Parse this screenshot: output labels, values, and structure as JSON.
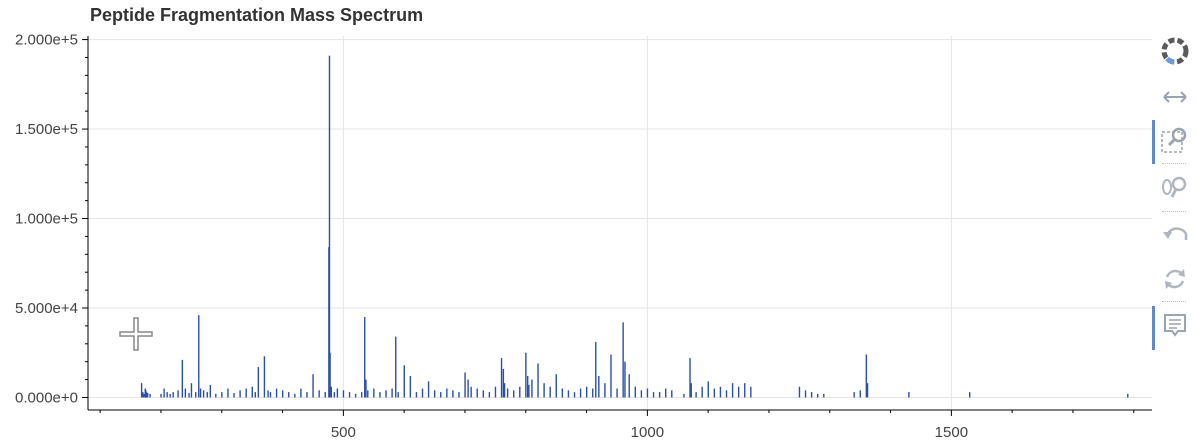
{
  "chart_data": {
    "type": "bar",
    "title": "Peptide Fragmentation Mass Spectrum",
    "xlabel": "",
    "ylabel": "",
    "xlim": [
      80,
      1830
    ],
    "ylim": [
      -7000,
      202000
    ],
    "x_ticks": [
      500,
      1000,
      1500
    ],
    "x_tick_labels": [
      "500",
      "1000",
      "1500"
    ],
    "x_minor_ticks": [
      100,
      200,
      300,
      400,
      600,
      700,
      800,
      900,
      1100,
      1200,
      1300,
      1400,
      1600,
      1700,
      1800
    ],
    "y_ticks": [
      0,
      50000,
      100000,
      150000,
      200000
    ],
    "y_tick_labels": [
      "0.000e+0",
      "5.000e+4",
      "1.000e+5",
      "1.500e+5",
      "2.000e+5"
    ],
    "y_minor_step": 10000,
    "grid": true,
    "bar_color": "#2b4fa6",
    "series": [
      {
        "x": [
          168,
          170,
          172,
          174,
          175,
          176,
          178,
          182,
          200,
          205,
          210,
          215,
          220,
          228,
          235,
          240,
          246,
          250,
          257,
          262,
          265,
          270,
          276,
          281,
          290,
          300,
          310,
          320,
          330,
          340,
          350,
          355,
          360,
          370,
          376,
          380,
          390,
          400,
          410,
          420,
          430,
          440,
          450,
          460,
          470,
          476,
          477,
          478,
          480,
          485,
          490,
          500,
          510,
          520,
          530,
          535,
          537,
          540,
          550,
          560,
          570,
          580,
          586,
          590,
          600,
          610,
          620,
          630,
          640,
          650,
          660,
          670,
          680,
          690,
          700,
          705,
          710,
          720,
          730,
          740,
          750,
          760,
          763,
          765,
          770,
          780,
          790,
          800,
          803,
          805,
          810,
          820,
          830,
          840,
          850,
          860,
          870,
          880,
          890,
          900,
          910,
          915,
          920,
          930,
          940,
          950,
          960,
          963,
          970,
          980,
          990,
          1000,
          1010,
          1020,
          1030,
          1040,
          1060,
          1070,
          1072,
          1080,
          1090,
          1100,
          1110,
          1120,
          1130,
          1140,
          1150,
          1160,
          1170,
          1250,
          1260,
          1270,
          1280,
          1290,
          1340,
          1350,
          1360,
          1362,
          1430,
          1530,
          1790
        ],
        "values": [
          8000,
          3000,
          2000,
          5000,
          4000,
          3000,
          2500,
          2000,
          2000,
          5000,
          3000,
          2000,
          3000,
          4000,
          21000,
          5000,
          2500,
          8000,
          3000,
          46000,
          5000,
          4000,
          3000,
          7000,
          2000,
          3000,
          5000,
          2500,
          4000,
          5000,
          6000,
          3000,
          17000,
          23000,
          4000,
          3000,
          5000,
          4000,
          3000,
          2000,
          5000,
          3000,
          13000,
          4000,
          3000,
          84000,
          191000,
          25000,
          6000,
          3000,
          5000,
          4000,
          3000,
          2000,
          3000,
          45000,
          10000,
          4000,
          5000,
          3000,
          4000,
          5000,
          34000,
          3000,
          18000,
          12000,
          3000,
          5000,
          9000,
          4000,
          3000,
          5000,
          4000,
          3000,
          14000,
          10000,
          6000,
          5000,
          4000,
          3000,
          6000,
          22000,
          16000,
          8000,
          5000,
          4000,
          6000,
          25000,
          12000,
          7000,
          10000,
          19000,
          8000,
          6000,
          13000,
          5000,
          4000,
          3000,
          5000,
          6000,
          5000,
          31000,
          12000,
          8000,
          24000,
          5000,
          42000,
          20000,
          13000,
          6000,
          4000,
          5000,
          3000,
          3000,
          5000,
          4000,
          2000,
          22000,
          8000,
          3000,
          6000,
          9000,
          5000,
          6000,
          4000,
          8000,
          6000,
          8000,
          6000,
          6000,
          4000,
          3000,
          2000,
          2000,
          3000,
          4000,
          24000,
          8000,
          3000,
          3000,
          2000
        ]
      }
    ]
  }
}
